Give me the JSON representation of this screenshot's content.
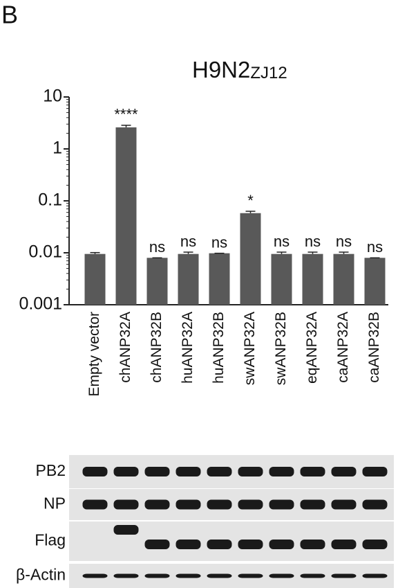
{
  "panel_label": "B",
  "chart_data": {
    "type": "bar",
    "title": "H9N2",
    "title_subscript": "ZJ12",
    "categories": [
      "Empty vector",
      "chANP32A",
      "chANP32B",
      "huANP32A",
      "huANP32B",
      "swANP32A",
      "swANP32B",
      "eqANP32A",
      "caANP32A",
      "caANP32B"
    ],
    "values": [
      0.0095,
      2.6,
      0.008,
      0.0095,
      0.0098,
      0.058,
      0.0095,
      0.0095,
      0.0095,
      0.008
    ],
    "errors": [
      0.0006,
      0.25,
      0,
      0.0008,
      0,
      0.005,
      0.0008,
      0.0008,
      0.0008,
      0
    ],
    "annotations": [
      null,
      "****",
      "ns",
      "ns",
      "ns",
      "*",
      "ns",
      "ns",
      "ns",
      "ns"
    ],
    "color": "#595959",
    "log_scale": true,
    "ylim": [
      0.001,
      10
    ],
    "yticks": [
      0.001,
      0.01,
      0.1,
      1,
      10
    ]
  },
  "blot": {
    "rows": [
      "PB2",
      "NP",
      "Flag",
      "β-Actin"
    ]
  }
}
